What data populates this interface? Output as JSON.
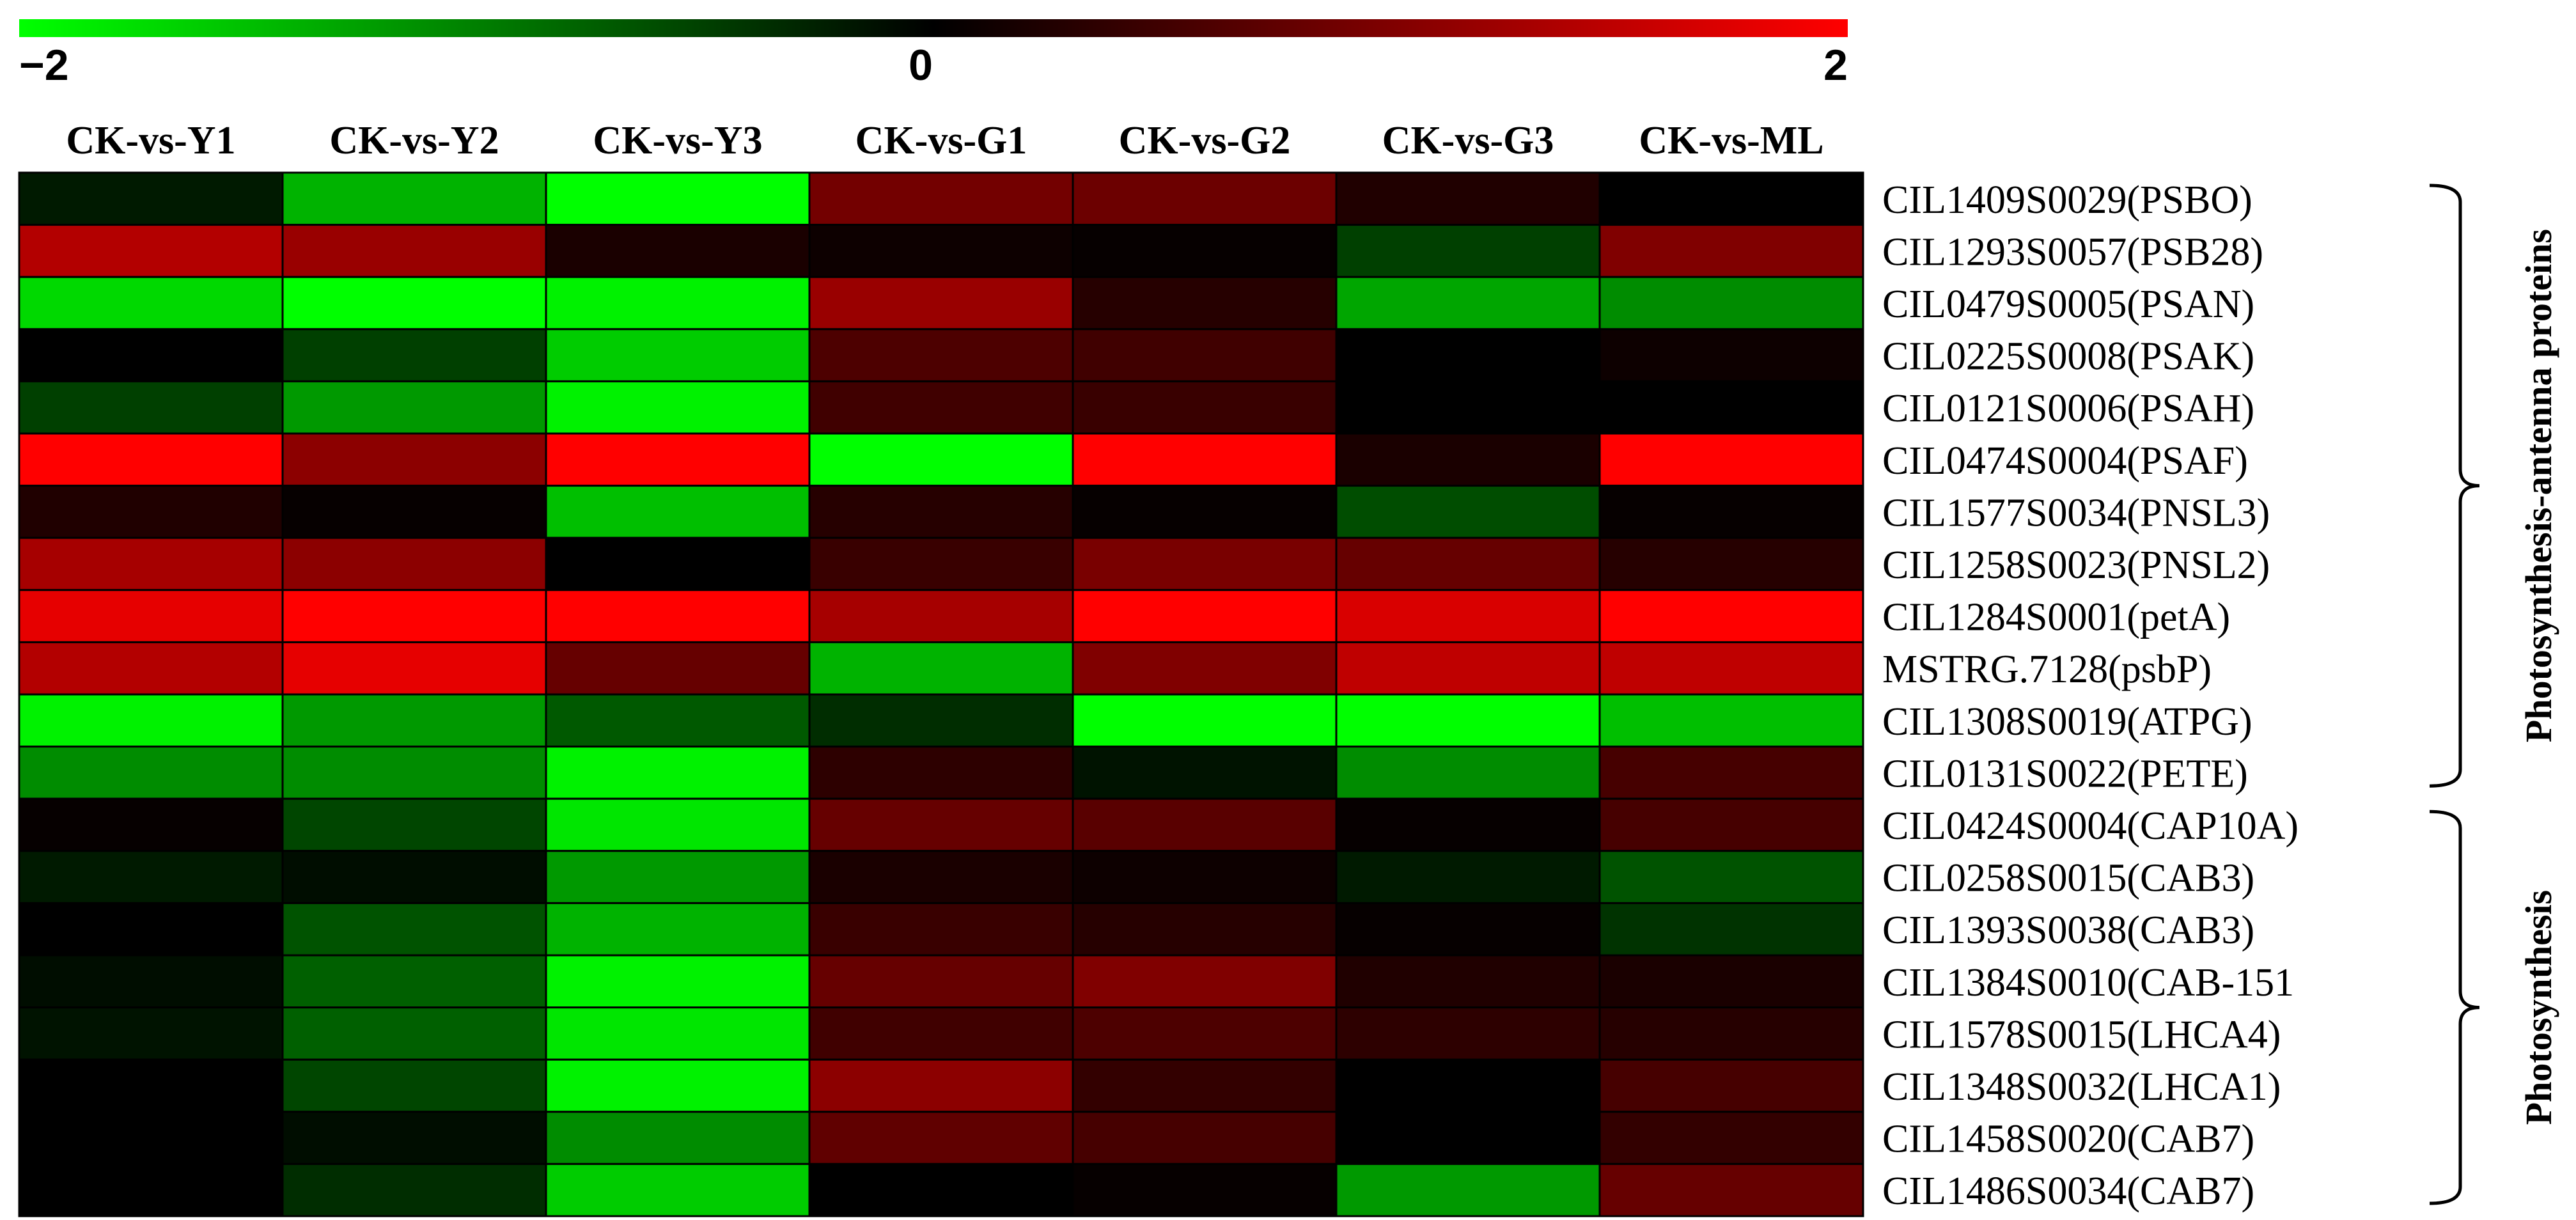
{
  "chart_data": {
    "type": "heatmap",
    "color_scale": {
      "min": -2,
      "mid": 0,
      "max": 2,
      "ticks": [
        "−2",
        "0",
        "2"
      ],
      "colors": {
        "low": "#00ff00",
        "mid": "#000000",
        "high": "#ff0000"
      }
    },
    "columns": [
      "CK-vs-Y1",
      "CK-vs-Y2",
      "CK-vs-Y3",
      "CK-vs-G1",
      "CK-vs-G2",
      "CK-vs-G3",
      "CK-vs-ML"
    ],
    "rows": [
      "CIL1409S0029(PSBO)",
      "CIL1293S0057(PSB28)",
      "CIL0479S0005(PSAN)",
      "CIL0225S0008(PSAK)",
      "CIL0121S0006(PSAH)",
      "CIL0474S0004(PSAF)",
      "CIL1577S0034(PNSL3)",
      "CIL1258S0023(PNSL2)",
      "CIL1284S0001(petA)",
      "MSTRG.7128(psbP)",
      "CIL1308S0019(ATPG)",
      "CIL0131S0022(PETE)",
      "CIL0424S0004(CAP10A)",
      "CIL0258S0015(CAB3)",
      "CIL1393S0038(CAB3)",
      "CIL1384S0010(CAB-151",
      "CIL1578S0015(LHCA4)",
      "CIL1348S0032(LHCA1)",
      "CIL1458S0020(CAB7)",
      "CIL1486S0034(CAB7)"
    ],
    "values": [
      [
        -0.2,
        -1.4,
        -2.0,
        0.9,
        0.85,
        0.25,
        0.0
      ],
      [
        1.4,
        1.2,
        0.2,
        0.1,
        0.05,
        -0.5,
        1.0
      ],
      [
        -1.7,
        -2.0,
        -1.9,
        1.2,
        0.3,
        -1.3,
        -1.1
      ],
      [
        0.0,
        -0.5,
        -1.6,
        0.6,
        0.5,
        0.0,
        0.1
      ],
      [
        -0.5,
        -1.2,
        -1.9,
        0.5,
        0.45,
        0.0,
        0.0
      ],
      [
        2.0,
        1.1,
        2.0,
        -2.0,
        2.0,
        0.2,
        2.0
      ],
      [
        0.25,
        0.05,
        -1.5,
        0.3,
        0.05,
        -0.6,
        0.05
      ],
      [
        1.3,
        1.1,
        0.0,
        0.45,
        0.95,
        0.8,
        0.3
      ],
      [
        1.8,
        2.0,
        2.0,
        1.3,
        2.0,
        1.7,
        2.0
      ],
      [
        1.4,
        1.8,
        0.8,
        -1.4,
        1.0,
        1.5,
        1.5
      ],
      [
        -1.9,
        -1.2,
        -0.7,
        -0.35,
        -2.0,
        -2.0,
        -1.5
      ],
      [
        -1.1,
        -1.1,
        -1.9,
        0.35,
        -0.15,
        -1.1,
        0.55
      ],
      [
        0.05,
        -0.55,
        -1.8,
        0.8,
        0.7,
        0.05,
        0.55
      ],
      [
        -0.2,
        -0.1,
        -1.2,
        0.2,
        0.1,
        -0.2,
        -0.65
      ],
      [
        0.0,
        -0.65,
        -1.4,
        0.45,
        0.3,
        0.05,
        -0.4
      ],
      [
        -0.1,
        -0.75,
        -1.9,
        0.8,
        1.0,
        0.25,
        0.2
      ],
      [
        -0.15,
        -0.75,
        -1.8,
        0.5,
        0.6,
        0.35,
        0.3
      ],
      [
        0.0,
        -0.55,
        -1.9,
        1.1,
        0.4,
        0.0,
        0.55
      ],
      [
        0.0,
        -0.1,
        -1.1,
        0.75,
        0.55,
        0.0,
        0.4
      ],
      [
        0.0,
        -0.35,
        -1.6,
        0.0,
        0.05,
        -1.2,
        0.8
      ]
    ],
    "groups": [
      {
        "label": "Photosynthesis-antenna proteins",
        "from_row": 0,
        "to_row": 11
      },
      {
        "label": "Photosynthesis",
        "from_row": 12,
        "to_row": 19
      }
    ]
  }
}
